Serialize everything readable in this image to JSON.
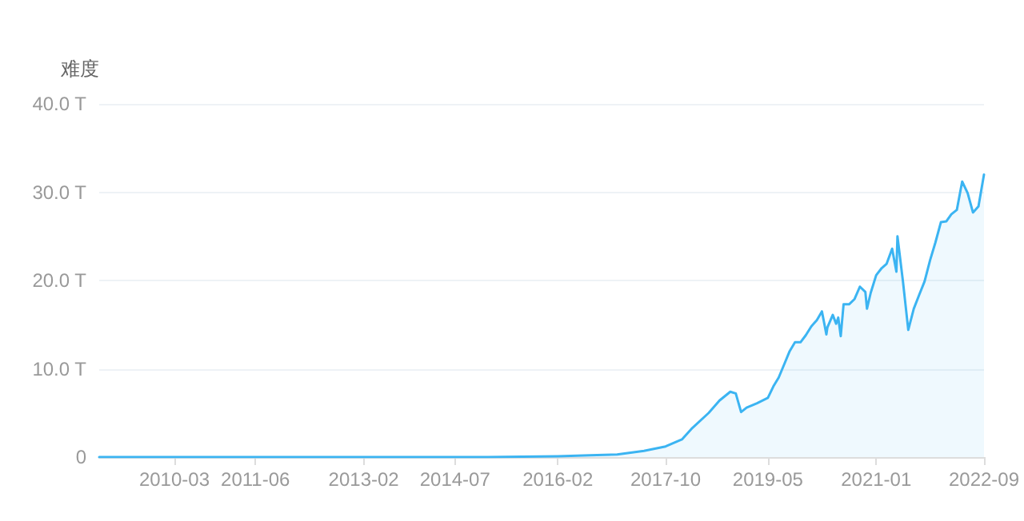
{
  "chart_data": {
    "type": "area",
    "ylabel": "难度",
    "x": [
      "2009-01",
      "2011-01",
      "2013-01",
      "2014-01",
      "2015-01",
      "2016-02",
      "2016-08",
      "2017-01",
      "2017-06",
      "2017-10",
      "2018-01",
      "2018-03",
      "2018-06",
      "2018-08",
      "2018-10",
      "2018-11",
      "2018-12",
      "2019-01",
      "2019-03",
      "2019-05",
      "2019-06",
      "2019-07",
      "2019-08",
      "2019-09",
      "2019-10",
      "2019-11",
      "2019-12",
      "2020-01",
      "2020-02",
      "2020-03",
      "2020-03-26",
      "2020-04",
      "2020-05",
      "2020-05-20",
      "2020-06",
      "2020-06-15",
      "2020-07",
      "2020-08",
      "2020-09",
      "2020-10",
      "2020-11",
      "2020-11-10",
      "2020-12",
      "2021-01",
      "2021-02",
      "2021-03",
      "2021-04",
      "2021-04-25",
      "2021-05",
      "2021-06",
      "2021-07",
      "2021-08",
      "2021-09",
      "2021-10",
      "2021-11",
      "2021-12",
      "2022-01",
      "2022-02",
      "2022-03",
      "2022-04",
      "2022-05",
      "2022-06",
      "2022-07",
      "2022-08",
      "2022-09"
    ],
    "series": [
      {
        "color": "#3bb4f2",
        "values": [
          0,
          0,
          0,
          0,
          0,
          0.1,
          0.2,
          0.3,
          0.7,
          1.2,
          2.0,
          3.3,
          5.0,
          6.4,
          7.4,
          7.2,
          5.1,
          5.6,
          6.1,
          6.7,
          8.0,
          9.0,
          10.5,
          12.0,
          13.0,
          13.0,
          13.8,
          14.8,
          15.5,
          16.5,
          13.9,
          14.7,
          16.1,
          15.1,
          15.8,
          13.7,
          17.3,
          17.3,
          17.9,
          19.3,
          18.7,
          16.8,
          18.6,
          20.6,
          21.4,
          21.9,
          23.6,
          21.0,
          25.0,
          19.9,
          14.4,
          16.8,
          18.4,
          19.9,
          22.3,
          24.3,
          26.6,
          26.7,
          27.5,
          28.0,
          31.2,
          29.9,
          27.7,
          28.4,
          32.0
        ]
      }
    ],
    "xlim": [
      "2009-01",
      "2022-09"
    ],
    "xticks": [
      "2010-03",
      "2011-06",
      "2013-02",
      "2014-07",
      "2016-02",
      "2017-10",
      "2019-05",
      "2021-01",
      "2022-09"
    ],
    "ylim": [
      0,
      40
    ],
    "yticks": [
      {
        "value": 0,
        "label": "0"
      },
      {
        "value": 10,
        "label": "10.0 T"
      },
      {
        "value": 20,
        "label": "20.0 T"
      },
      {
        "value": 30,
        "label": "30.0 T"
      },
      {
        "value": 40,
        "label": "40.0 T"
      }
    ],
    "grid": "y",
    "marker": "none",
    "line_style": "solid"
  }
}
